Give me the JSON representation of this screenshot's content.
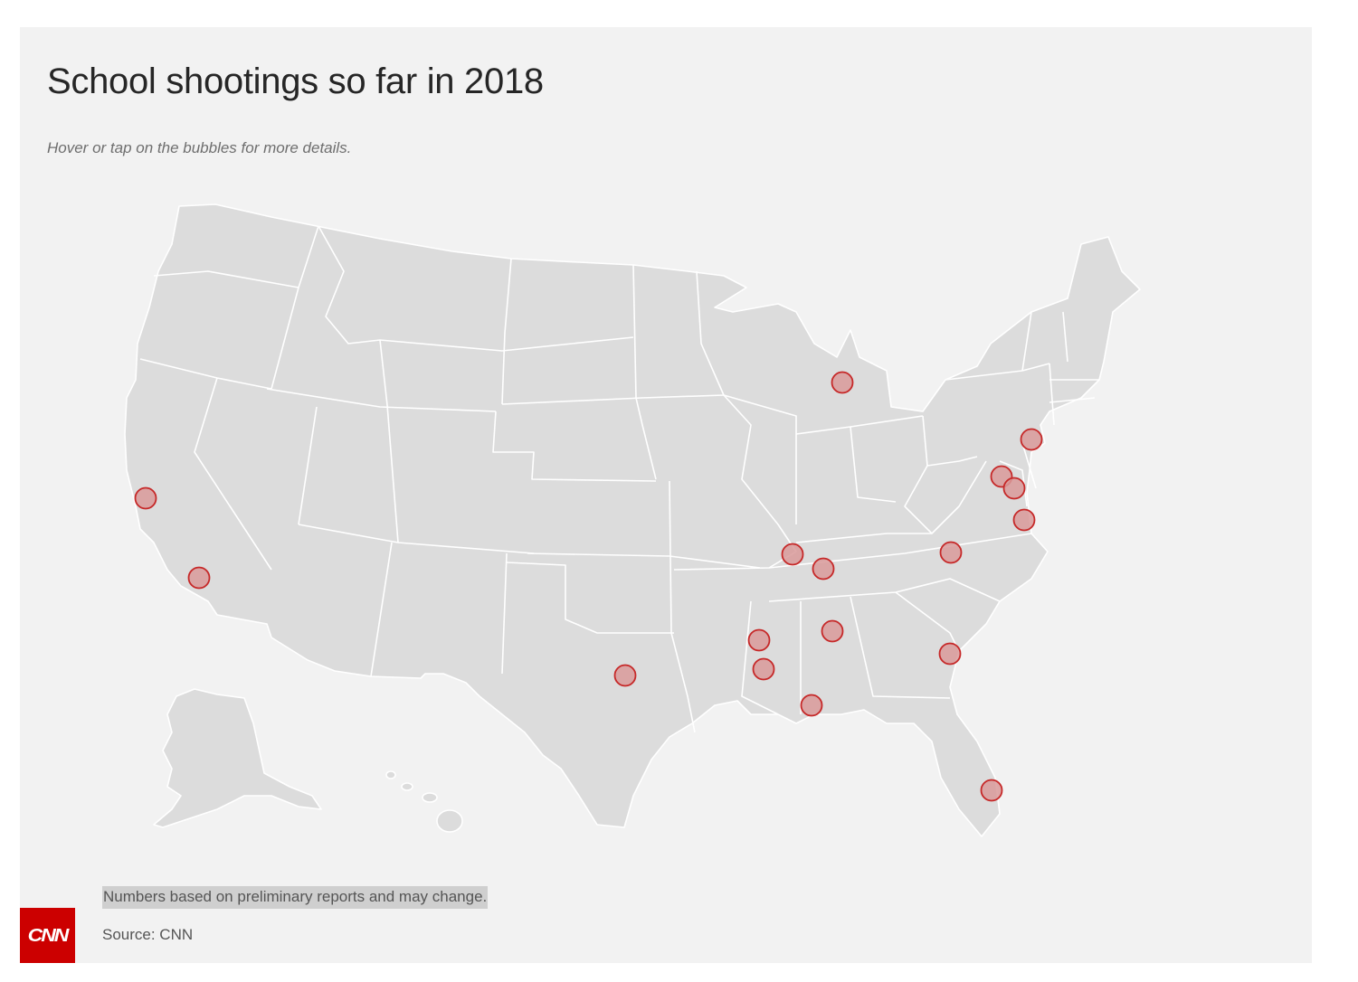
{
  "title": "School shootings so far in 2018",
  "subtitle": "Hover or tap on the bubbles for more details.",
  "note": "Numbers based on preliminary reports and may change.",
  "source": "Source: CNN",
  "logo": "CNN",
  "colors": {
    "background": "#f2f2f2",
    "land": "#dcdcdc",
    "borders": "#ffffff",
    "bubble_fill": "#d99a9a",
    "bubble_stroke": "#c62828",
    "brand": "#cc0000"
  },
  "bubbles": [
    {
      "location": "Northern California"
    },
    {
      "location": "Southern California"
    },
    {
      "location": "Texas"
    },
    {
      "location": "Michigan"
    },
    {
      "location": "New Jersey"
    },
    {
      "location": "Maryland"
    },
    {
      "location": "Maryland (2)"
    },
    {
      "location": "Virginia"
    },
    {
      "location": "North Carolina"
    },
    {
      "location": "Western Kentucky"
    },
    {
      "location": "Tennessee"
    },
    {
      "location": "Alabama"
    },
    {
      "location": "Mississippi (north)"
    },
    {
      "location": "Mississippi (central)"
    },
    {
      "location": "Alabama Gulf Coast"
    },
    {
      "location": "Georgia"
    },
    {
      "location": "South Florida"
    }
  ]
}
